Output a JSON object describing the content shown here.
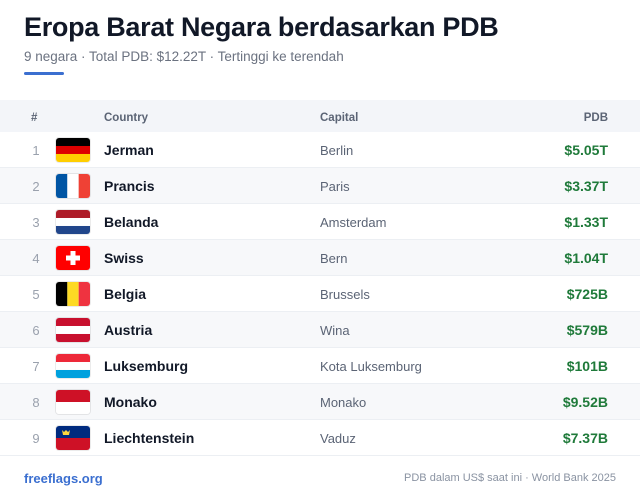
{
  "header": {
    "title": "Eropa Barat Negara berdasarkan PDB",
    "subtitle": "9 negara · Total PDB: $12.22T · Tertinggi ke terendah",
    "accent_color": "#3b6fd0"
  },
  "table": {
    "columns": {
      "num": "#",
      "country": "Country",
      "capital": "Capital",
      "pdb": "PDB"
    },
    "rows": [
      {
        "num": "1",
        "country": "Jerman",
        "capital": "Berlin",
        "pdb": "$5.05T",
        "flag": "germany-flag"
      },
      {
        "num": "2",
        "country": "Prancis",
        "capital": "Paris",
        "pdb": "$3.37T",
        "flag": "france-flag"
      },
      {
        "num": "3",
        "country": "Belanda",
        "capital": "Amsterdam",
        "pdb": "$1.33T",
        "flag": "netherlands-flag"
      },
      {
        "num": "4",
        "country": "Swiss",
        "capital": "Bern",
        "pdb": "$1.04T",
        "flag": "switzerland-flag"
      },
      {
        "num": "5",
        "country": "Belgia",
        "capital": "Brussels",
        "pdb": "$725B",
        "flag": "belgium-flag"
      },
      {
        "num": "6",
        "country": "Austria",
        "capital": "Wina",
        "pdb": "$579B",
        "flag": "austria-flag"
      },
      {
        "num": "7",
        "country": "Luksemburg",
        "capital": "Kota Luksemburg",
        "pdb": "$101B",
        "flag": "luxembourg-flag"
      },
      {
        "num": "8",
        "country": "Monako",
        "capital": "Monako",
        "pdb": "$9.52B",
        "flag": "monaco-flag"
      },
      {
        "num": "9",
        "country": "Liechtenstein",
        "capital": "Vaduz",
        "pdb": "$7.37B",
        "flag": "liechtenstein-flag"
      }
    ],
    "value_color": "#1f7a3a"
  },
  "footer": {
    "link": "freeflags.org",
    "note": "PDB dalam US$ saat ini · World Bank 2025"
  }
}
